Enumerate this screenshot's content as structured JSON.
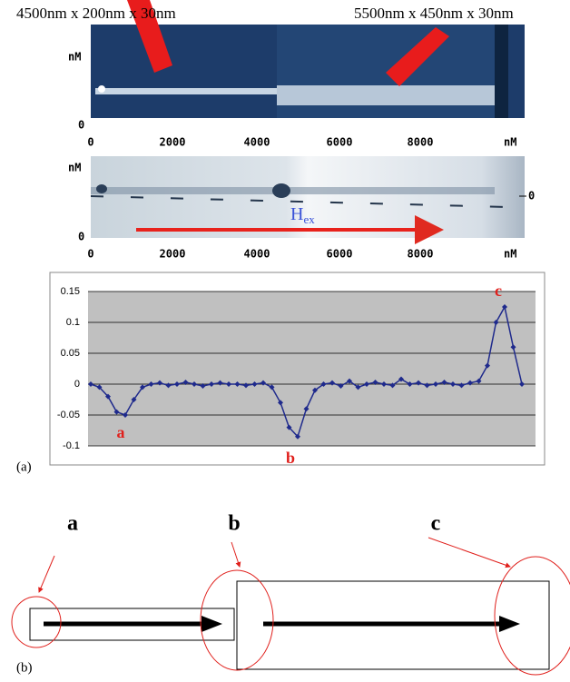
{
  "afm_image": {
    "label_left": "4500nm x 200nm x 30nm",
    "label_right": "5500nm x 450nm x 30nm",
    "unit_y": "nM",
    "zero_y": "0",
    "unit_x": "nM",
    "x_ticks": [
      "0",
      "2000",
      "4000",
      "6000",
      "8000"
    ]
  },
  "mfm_image": {
    "unit_y": "nM",
    "zero_y": "0",
    "unit_x": "nM",
    "x_ticks": [
      "0",
      "2000",
      "4000",
      "6000",
      "8000"
    ],
    "zero_right": "0",
    "field_label": "H",
    "field_sub": "ex"
  },
  "panel_a_label": "(a)",
  "chart_data": {
    "type": "line",
    "color": "#1f2a8c",
    "ylim": [
      -0.1,
      0.15
    ],
    "yticks": [
      -0.1,
      -0.05,
      0,
      0.05,
      0.1,
      0.15
    ],
    "grid": true,
    "values": [
      0,
      -0.005,
      -0.02,
      -0.045,
      -0.05,
      -0.025,
      -0.005,
      0,
      0.002,
      -0.002,
      0,
      0.003,
      0,
      -0.003,
      0,
      0.002,
      0,
      0,
      -0.002,
      0,
      0.002,
      -0.005,
      -0.03,
      -0.07,
      -0.085,
      -0.04,
      -0.01,
      0,
      0.002,
      -0.003,
      0.005,
      -0.005,
      0,
      0.003,
      0,
      -0.002,
      0.008,
      0,
      0.002,
      -0.002,
      0,
      0.003,
      0,
      -0.002,
      0.002,
      0.005,
      0.03,
      0.1,
      0.125,
      0.06,
      0
    ],
    "annotations": [
      "a",
      "b",
      "c"
    ]
  },
  "diagram": {
    "labels": [
      "a",
      "b",
      "c"
    ],
    "panel_label": "(b)"
  }
}
